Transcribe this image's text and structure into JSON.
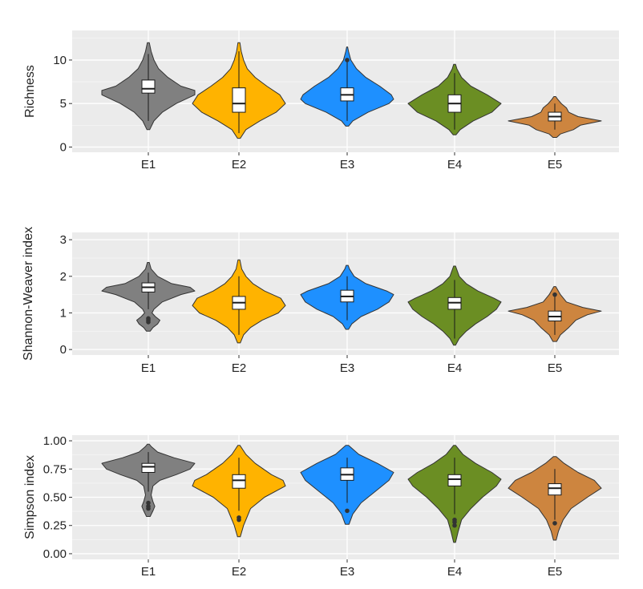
{
  "chart_data": [
    {
      "type": "violin",
      "ylabel": "Richness",
      "ylim": [
        -0.6,
        13.4
      ],
      "yticks": [
        0,
        5,
        10
      ],
      "ytick_labels": [
        "0",
        "5",
        "10"
      ],
      "categories": [
        "E1",
        "E2",
        "E3",
        "E4",
        "E5"
      ],
      "colors": [
        "#808080",
        "#FFB300",
        "#1E90FF",
        "#6B8E23",
        "#CD853F"
      ],
      "grid": true,
      "violins": [
        {
          "label": "E1",
          "min": 2,
          "max": 12,
          "q1": 6.2,
          "median": 6.7,
          "q3": 7.7,
          "whisker_low": 3,
          "whisker_high": 10.7,
          "outliers": [],
          "profile": [
            [
              2,
              0.03
            ],
            [
              3,
              0.12
            ],
            [
              4,
              0.3
            ],
            [
              5,
              0.6
            ],
            [
              6,
              1.0
            ],
            [
              6.5,
              1.0
            ],
            [
              7,
              0.7
            ],
            [
              8,
              0.42
            ],
            [
              9,
              0.22
            ],
            [
              10,
              0.12
            ],
            [
              11,
              0.06
            ],
            [
              12,
              0.02
            ]
          ]
        },
        {
          "label": "E2",
          "min": 1,
          "max": 12,
          "q1": 4,
          "median": 5,
          "q3": 6.8,
          "whisker_low": 1.6,
          "whisker_high": 11,
          "outliers": [],
          "profile": [
            [
              1,
              0.03
            ],
            [
              2,
              0.15
            ],
            [
              3,
              0.45
            ],
            [
              4,
              0.8
            ],
            [
              5,
              1.0
            ],
            [
              6,
              0.88
            ],
            [
              7,
              0.6
            ],
            [
              8,
              0.35
            ],
            [
              9,
              0.18
            ],
            [
              10,
              0.1
            ],
            [
              11,
              0.05
            ],
            [
              12,
              0.02
            ]
          ]
        },
        {
          "label": "E3",
          "min": 2.4,
          "max": 11.5,
          "q1": 5.3,
          "median": 6,
          "q3": 6.8,
          "whisker_low": 3,
          "whisker_high": 9.8,
          "outliers": [
            10
          ],
          "profile": [
            [
              2.4,
              0.03
            ],
            [
              3,
              0.12
            ],
            [
              4,
              0.45
            ],
            [
              5,
              0.9
            ],
            [
              5.5,
              1.0
            ],
            [
              6,
              0.95
            ],
            [
              7,
              0.7
            ],
            [
              8,
              0.4
            ],
            [
              9,
              0.2
            ],
            [
              10,
              0.08
            ],
            [
              11,
              0.03
            ],
            [
              11.5,
              0.01
            ]
          ]
        },
        {
          "label": "E4",
          "min": 1.4,
          "max": 9.5,
          "q1": 4,
          "median": 5,
          "q3": 6,
          "whisker_low": 2,
          "whisker_high": 8.5,
          "outliers": [],
          "profile": [
            [
              1.4,
              0.03
            ],
            [
              2,
              0.12
            ],
            [
              3,
              0.4
            ],
            [
              4,
              0.8
            ],
            [
              5,
              1.0
            ],
            [
              6,
              0.7
            ],
            [
              7,
              0.35
            ],
            [
              8,
              0.15
            ],
            [
              9,
              0.05
            ],
            [
              9.5,
              0.02
            ]
          ]
        },
        {
          "label": "E5",
          "min": 1.1,
          "max": 5.8,
          "q1": 3,
          "median": 3.5,
          "q3": 4,
          "whisker_low": 2,
          "whisker_high": 5,
          "outliers": [],
          "profile": [
            [
              1.1,
              0.04
            ],
            [
              1.5,
              0.12
            ],
            [
              2,
              0.4
            ],
            [
              2.5,
              0.55
            ],
            [
              3,
              1.0
            ],
            [
              3.5,
              0.5
            ],
            [
              4,
              0.3
            ],
            [
              4.5,
              0.25
            ],
            [
              5,
              0.14
            ],
            [
              5.5,
              0.06
            ],
            [
              5.8,
              0.02
            ]
          ]
        }
      ]
    },
    {
      "type": "violin",
      "ylabel": "Shannon-Weaver index",
      "ylim": [
        -0.15,
        3.2
      ],
      "yticks": [
        0,
        1,
        2,
        3
      ],
      "ytick_labels": [
        "0",
        "1",
        "2",
        "3"
      ],
      "categories": [
        "E1",
        "E2",
        "E3",
        "E4",
        "E5"
      ],
      "colors": [
        "#808080",
        "#FFB300",
        "#1E90FF",
        "#6B8E23",
        "#CD853F"
      ],
      "grid": true,
      "violins": [
        {
          "label": "E1",
          "min": 0.5,
          "max": 2.38,
          "q1": 1.57,
          "median": 1.7,
          "q3": 1.82,
          "whisker_low": 1.1,
          "whisker_high": 2.1,
          "outliers": [
            0.8,
            0.85,
            0.75
          ],
          "profile": [
            [
              0.5,
              0.04
            ],
            [
              0.6,
              0.1
            ],
            [
              0.7,
              0.2
            ],
            [
              0.8,
              0.25
            ],
            [
              0.9,
              0.15
            ],
            [
              1.0,
              0.08
            ],
            [
              1.1,
              0.12
            ],
            [
              1.3,
              0.3
            ],
            [
              1.5,
              0.7
            ],
            [
              1.6,
              1.0
            ],
            [
              1.7,
              0.9
            ],
            [
              1.8,
              0.5
            ],
            [
              2.0,
              0.2
            ],
            [
              2.2,
              0.06
            ],
            [
              2.38,
              0.02
            ]
          ]
        },
        {
          "label": "E2",
          "min": 0.18,
          "max": 2.45,
          "q1": 1.1,
          "median": 1.28,
          "q3": 1.45,
          "whisker_low": 0.4,
          "whisker_high": 2.0,
          "outliers": [],
          "profile": [
            [
              0.18,
              0.03
            ],
            [
              0.4,
              0.1
            ],
            [
              0.6,
              0.25
            ],
            [
              0.8,
              0.5
            ],
            [
              1.0,
              0.85
            ],
            [
              1.2,
              1.0
            ],
            [
              1.4,
              0.9
            ],
            [
              1.6,
              0.55
            ],
            [
              1.8,
              0.3
            ],
            [
              2.0,
              0.15
            ],
            [
              2.2,
              0.06
            ],
            [
              2.45,
              0.02
            ]
          ]
        },
        {
          "label": "E3",
          "min": 0.55,
          "max": 2.3,
          "q1": 1.3,
          "median": 1.45,
          "q3": 1.62,
          "whisker_low": 0.8,
          "whisker_high": 2.0,
          "outliers": [],
          "profile": [
            [
              0.55,
              0.03
            ],
            [
              0.7,
              0.1
            ],
            [
              0.9,
              0.3
            ],
            [
              1.1,
              0.65
            ],
            [
              1.3,
              0.9
            ],
            [
              1.5,
              1.0
            ],
            [
              1.6,
              0.85
            ],
            [
              1.8,
              0.4
            ],
            [
              2.0,
              0.15
            ],
            [
              2.2,
              0.05
            ],
            [
              2.3,
              0.02
            ]
          ]
        },
        {
          "label": "E4",
          "min": 0.12,
          "max": 2.28,
          "q1": 1.1,
          "median": 1.28,
          "q3": 1.42,
          "whisker_low": 0.3,
          "whisker_high": 1.9,
          "outliers": [],
          "profile": [
            [
              0.12,
              0.02
            ],
            [
              0.3,
              0.1
            ],
            [
              0.5,
              0.25
            ],
            [
              0.7,
              0.45
            ],
            [
              0.9,
              0.7
            ],
            [
              1.1,
              0.9
            ],
            [
              1.3,
              1.0
            ],
            [
              1.4,
              0.85
            ],
            [
              1.6,
              0.5
            ],
            [
              1.8,
              0.25
            ],
            [
              2.0,
              0.1
            ],
            [
              2.28,
              0.02
            ]
          ]
        },
        {
          "label": "E5",
          "min": 0.22,
          "max": 1.72,
          "q1": 0.78,
          "median": 0.9,
          "q3": 1.05,
          "whisker_low": 0.4,
          "whisker_high": 1.5,
          "outliers": [
            1.5
          ],
          "profile": [
            [
              0.22,
              0.04
            ],
            [
              0.4,
              0.12
            ],
            [
              0.6,
              0.3
            ],
            [
              0.8,
              0.45
            ],
            [
              0.95,
              0.7
            ],
            [
              1.05,
              1.0
            ],
            [
              1.15,
              0.6
            ],
            [
              1.3,
              0.25
            ],
            [
              1.5,
              0.12
            ],
            [
              1.72,
              0.02
            ]
          ]
        }
      ]
    },
    {
      "type": "violin",
      "ylabel": "Simpson index",
      "ylim": [
        -0.05,
        1.05
      ],
      "yticks": [
        0,
        0.25,
        0.5,
        0.75,
        1
      ],
      "ytick_labels": [
        "0.00",
        "0.25",
        "0.50",
        "0.75",
        "1.00"
      ],
      "categories": [
        "E1",
        "E2",
        "E3",
        "E4",
        "E5"
      ],
      "colors": [
        "#808080",
        "#FFB300",
        "#1E90FF",
        "#6B8E23",
        "#CD853F"
      ],
      "grid": true,
      "violins": [
        {
          "label": "E1",
          "min": 0.33,
          "max": 0.97,
          "q1": 0.72,
          "median": 0.77,
          "q3": 0.8,
          "whisker_low": 0.55,
          "whisker_high": 0.9,
          "outliers": [
            0.45,
            0.42,
            0.4
          ],
          "profile": [
            [
              0.33,
              0.04
            ],
            [
              0.38,
              0.1
            ],
            [
              0.42,
              0.14
            ],
            [
              0.46,
              0.1
            ],
            [
              0.52,
              0.06
            ],
            [
              0.6,
              0.1
            ],
            [
              0.65,
              0.25
            ],
            [
              0.7,
              0.6
            ],
            [
              0.75,
              0.9
            ],
            [
              0.8,
              1.0
            ],
            [
              0.85,
              0.55
            ],
            [
              0.9,
              0.2
            ],
            [
              0.95,
              0.06
            ],
            [
              0.97,
              0.02
            ]
          ]
        },
        {
          "label": "E2",
          "min": 0.15,
          "max": 0.96,
          "q1": 0.58,
          "median": 0.65,
          "q3": 0.7,
          "whisker_low": 0.38,
          "whisker_high": 0.85,
          "outliers": [
            0.32,
            0.3
          ],
          "profile": [
            [
              0.15,
              0.03
            ],
            [
              0.25,
              0.1
            ],
            [
              0.33,
              0.18
            ],
            [
              0.4,
              0.25
            ],
            [
              0.5,
              0.55
            ],
            [
              0.6,
              1.0
            ],
            [
              0.65,
              0.95
            ],
            [
              0.7,
              0.7
            ],
            [
              0.8,
              0.35
            ],
            [
              0.88,
              0.15
            ],
            [
              0.96,
              0.02
            ]
          ]
        },
        {
          "label": "E3",
          "min": 0.26,
          "max": 0.96,
          "q1": 0.65,
          "median": 0.7,
          "q3": 0.76,
          "whisker_low": 0.45,
          "whisker_high": 0.85,
          "outliers": [
            0.38
          ],
          "profile": [
            [
              0.26,
              0.04
            ],
            [
              0.35,
              0.12
            ],
            [
              0.45,
              0.3
            ],
            [
              0.55,
              0.6
            ],
            [
              0.65,
              0.9
            ],
            [
              0.72,
              1.0
            ],
            [
              0.8,
              0.65
            ],
            [
              0.88,
              0.25
            ],
            [
              0.96,
              0.03
            ]
          ]
        },
        {
          "label": "E4",
          "min": 0.1,
          "max": 0.96,
          "q1": 0.6,
          "median": 0.66,
          "q3": 0.7,
          "whisker_low": 0.35,
          "whisker_high": 0.85,
          "outliers": [
            0.3,
            0.28,
            0.25
          ],
          "profile": [
            [
              0.1,
              0.02
            ],
            [
              0.2,
              0.08
            ],
            [
              0.3,
              0.15
            ],
            [
              0.4,
              0.35
            ],
            [
              0.5,
              0.6
            ],
            [
              0.6,
              0.9
            ],
            [
              0.66,
              1.0
            ],
            [
              0.72,
              0.8
            ],
            [
              0.8,
              0.45
            ],
            [
              0.88,
              0.18
            ],
            [
              0.96,
              0.02
            ]
          ]
        },
        {
          "label": "E5",
          "min": 0.12,
          "max": 0.86,
          "q1": 0.52,
          "median": 0.58,
          "q3": 0.62,
          "whisker_low": 0.3,
          "whisker_high": 0.75,
          "outliers": [
            0.27
          ],
          "profile": [
            [
              0.12,
              0.03
            ],
            [
              0.2,
              0.08
            ],
            [
              0.3,
              0.18
            ],
            [
              0.4,
              0.35
            ],
            [
              0.5,
              0.7
            ],
            [
              0.58,
              1.0
            ],
            [
              0.65,
              0.85
            ],
            [
              0.72,
              0.5
            ],
            [
              0.8,
              0.2
            ],
            [
              0.86,
              0.03
            ]
          ]
        }
      ]
    }
  ]
}
